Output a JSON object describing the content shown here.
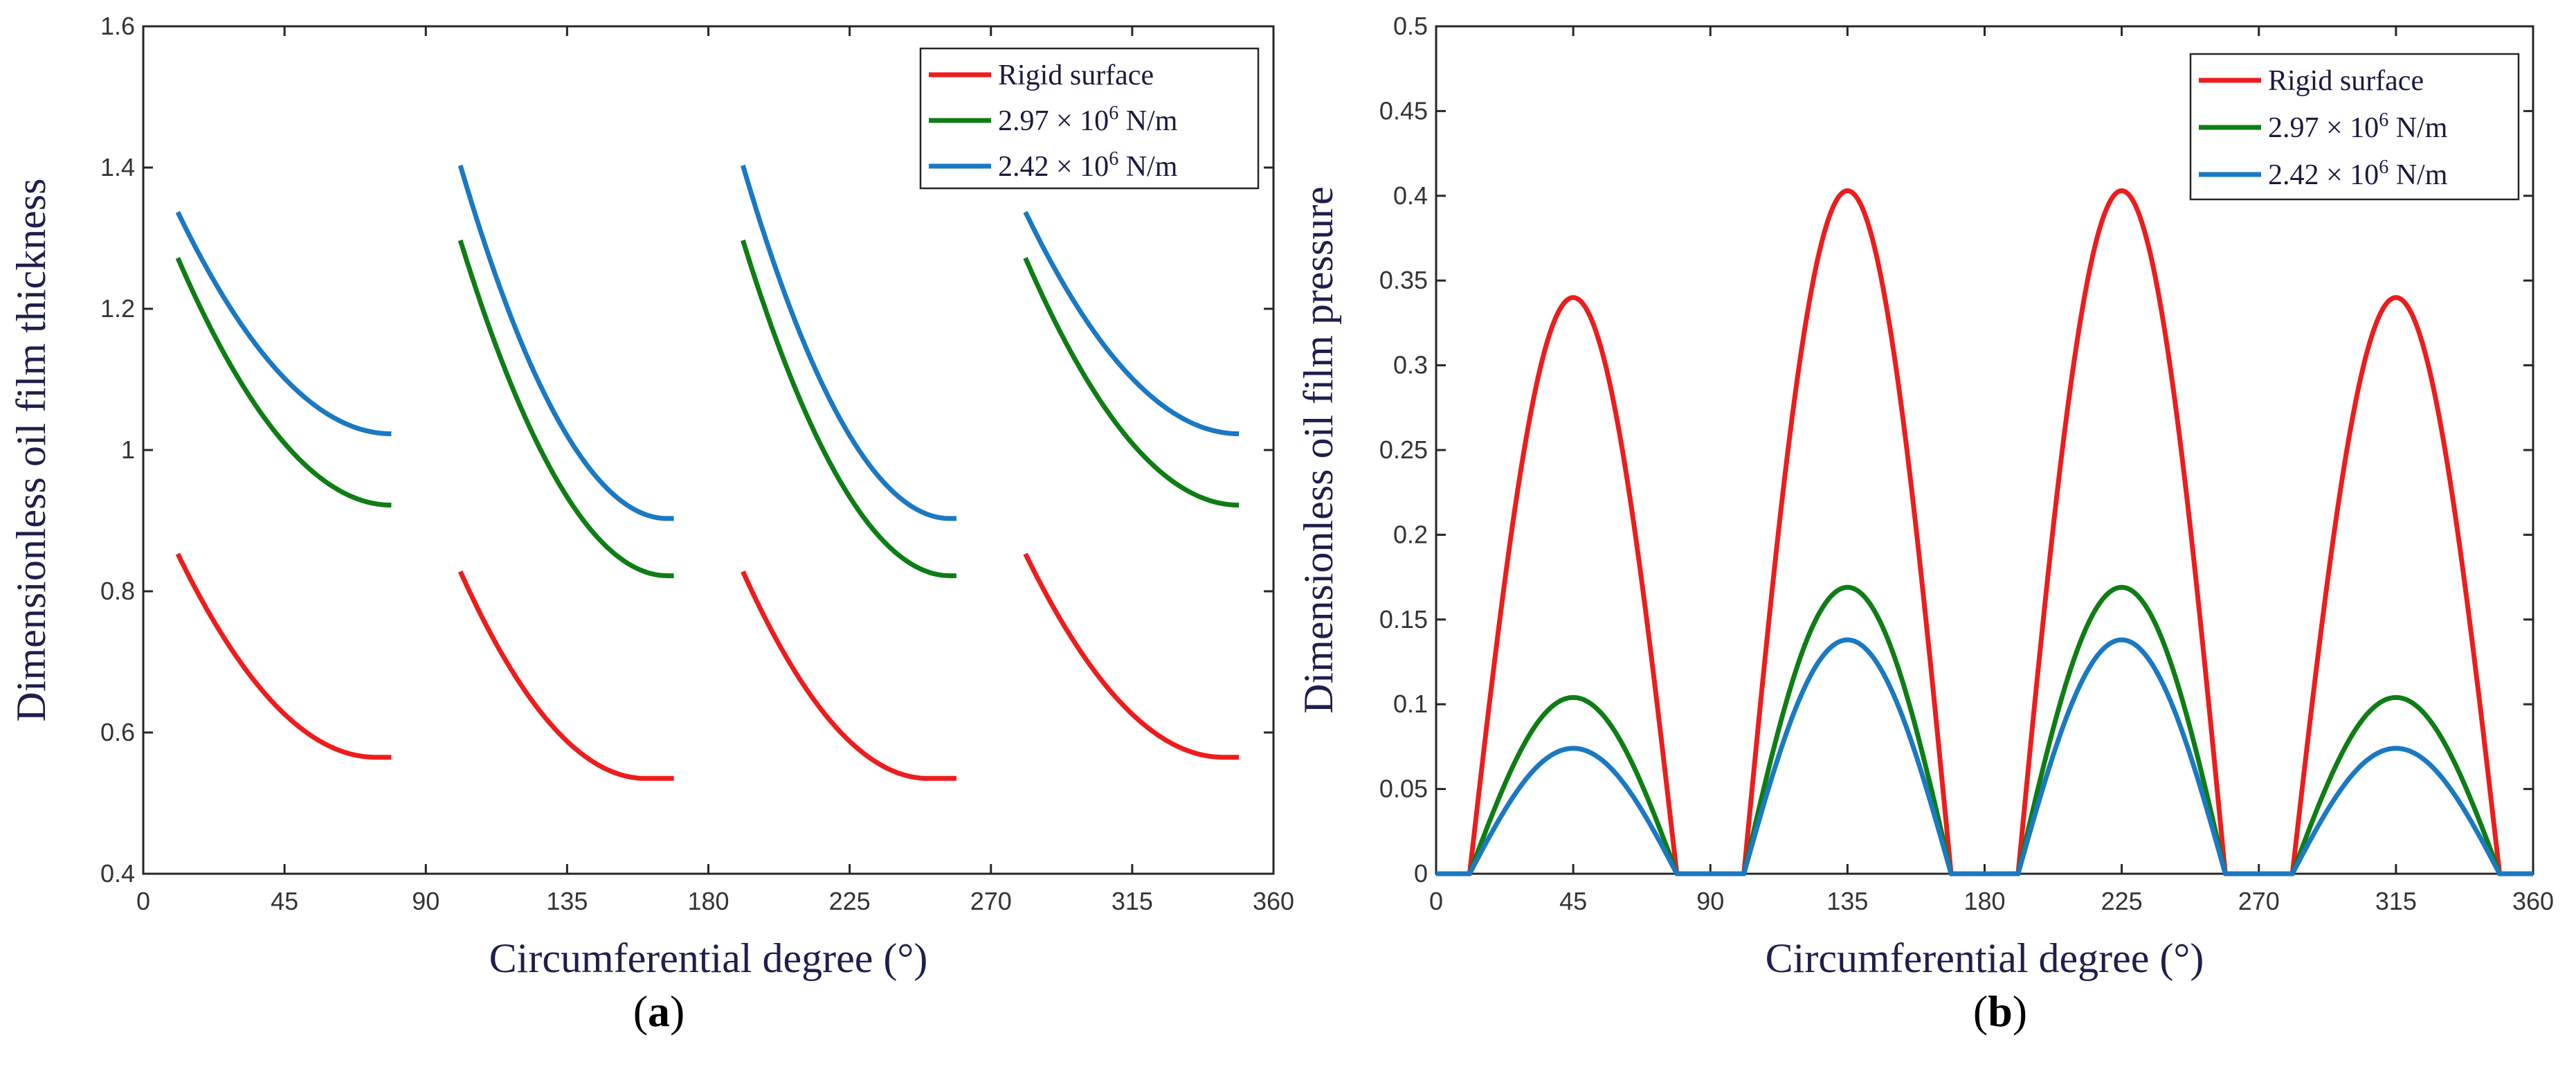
{
  "chart_data": [
    {
      "type": "line",
      "panel_label": "a",
      "xlabel": "Circumferential degree (°)",
      "ylabel": "Dimensionless oil film thickness",
      "xlim": [
        0,
        360
      ],
      "ylim": [
        0.4,
        1.6
      ],
      "xticks": [
        0,
        45,
        90,
        135,
        180,
        225,
        270,
        315,
        360
      ],
      "xtick_labels": [
        "0",
        "45",
        "90",
        "135",
        "180",
        "225",
        "270",
        "315",
        "360"
      ],
      "yticks": [
        0.4,
        0.6,
        0.8,
        1.0,
        1.2,
        1.4,
        1.6
      ],
      "ytick_labels": [
        "0.4",
        "0.6",
        "0.8",
        "1",
        "1.2",
        "1.4",
        "1.6"
      ],
      "legend_position": "top-right",
      "series": [
        {
          "name": "Rigid surface",
          "legend_parts": [
            "Rigid surface"
          ],
          "color": "#ee1c1c",
          "segments": [
            {
              "start": 11,
              "end": 79,
              "y_start": 0.853,
              "y_end": 0.565,
              "min_at": 74
            },
            {
              "start": 101,
              "end": 169,
              "y_start": 0.828,
              "y_end": 0.535,
              "min_at": 160
            },
            {
              "start": 191,
              "end": 259,
              "y_start": 0.828,
              "y_end": 0.535,
              "min_at": 250
            },
            {
              "start": 281,
              "end": 349,
              "y_start": 0.853,
              "y_end": 0.565,
              "min_at": 344
            }
          ]
        },
        {
          "name": "2.97 × 10^6 N/m",
          "legend_parts": [
            "2.97 × 10",
            "6",
            " N/m"
          ],
          "color": "#0e7e14",
          "segments": [
            {
              "start": 11,
              "end": 79,
              "y_start": 1.272,
              "y_end": 0.922,
              "min_at": 79
            },
            {
              "start": 101,
              "end": 169,
              "y_start": 1.297,
              "y_end": 0.822,
              "min_at": 167
            },
            {
              "start": 191,
              "end": 259,
              "y_start": 1.297,
              "y_end": 0.822,
              "min_at": 257
            },
            {
              "start": 281,
              "end": 349,
              "y_start": 1.272,
              "y_end": 0.922,
              "min_at": 349
            }
          ]
        },
        {
          "name": "2.42 × 10^6 N/m",
          "legend_parts": [
            "2.42 × 10",
            "6",
            " N/m"
          ],
          "color": "#1a79c2",
          "segments": [
            {
              "start": 11,
              "end": 79,
              "y_start": 1.337,
              "y_end": 1.023,
              "min_at": 79
            },
            {
              "start": 101,
              "end": 169,
              "y_start": 1.403,
              "y_end": 0.903,
              "min_at": 167
            },
            {
              "start": 191,
              "end": 259,
              "y_start": 1.403,
              "y_end": 0.903,
              "min_at": 257
            },
            {
              "start": 281,
              "end": 349,
              "y_start": 1.337,
              "y_end": 1.023,
              "min_at": 349
            }
          ]
        }
      ]
    },
    {
      "type": "line",
      "panel_label": "b",
      "xlabel": "Circumferential degree (°)",
      "ylabel": "Dimensionless oil film pressure",
      "xlim": [
        0,
        360
      ],
      "ylim": [
        0,
        0.5
      ],
      "xticks": [
        0,
        45,
        90,
        135,
        180,
        225,
        270,
        315,
        360
      ],
      "xtick_labels": [
        "0",
        "45",
        "90",
        "135",
        "180",
        "225",
        "270",
        "315",
        "360"
      ],
      "yticks": [
        0,
        0.05,
        0.1,
        0.15,
        0.2,
        0.25,
        0.3,
        0.35,
        0.4,
        0.45,
        0.5
      ],
      "ytick_labels": [
        "0",
        "0.05",
        "0.1",
        "0.15",
        "0.2",
        "0.25",
        "0.3",
        "0.35",
        "0.4",
        "0.45",
        "0.5"
      ],
      "legend_position": "top-right",
      "pad_ranges": [
        [
          11,
          79
        ],
        [
          101,
          169
        ],
        [
          191,
          259
        ],
        [
          281,
          349
        ]
      ],
      "series": [
        {
          "name": "Rigid surface",
          "legend_parts": [
            "Rigid surface"
          ],
          "color": "#ee1c1c",
          "peaks": [
            0.34,
            0.403,
            0.403,
            0.34
          ]
        },
        {
          "name": "2.97 × 10^6 N/m",
          "legend_parts": [
            "2.97 × 10",
            "6",
            " N/m"
          ],
          "color": "#0e7e14",
          "peaks": [
            0.104,
            0.169,
            0.169,
            0.104
          ]
        },
        {
          "name": "2.42 × 10^6 N/m",
          "legend_parts": [
            "2.42 × 10",
            "6",
            " N/m"
          ],
          "color": "#1a79c2",
          "peaks": [
            0.074,
            0.138,
            0.138,
            0.074
          ]
        }
      ]
    }
  ]
}
